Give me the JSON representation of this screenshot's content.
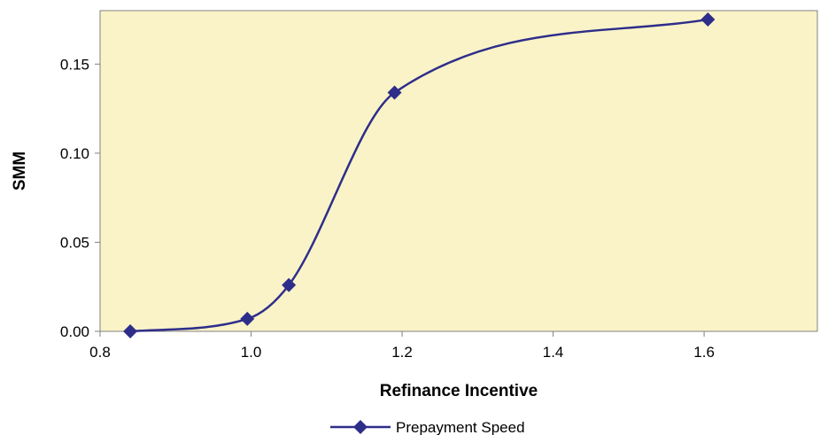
{
  "chart_data": {
    "type": "line",
    "title": "",
    "xlabel": "Refinance Incentive",
    "ylabel": "SMM",
    "xlim": [
      0.8,
      1.75
    ],
    "ylim": [
      0.0,
      0.18
    ],
    "x_ticks": [
      0.8,
      1.0,
      1.2,
      1.4,
      1.6
    ],
    "x_tick_labels": [
      "0.8",
      "1.0",
      "1.2",
      "1.4",
      "1.6"
    ],
    "y_ticks": [
      0.0,
      0.05,
      0.1,
      0.15
    ],
    "y_tick_labels": [
      "0.00",
      "0.05",
      "0.10",
      "0.15"
    ],
    "grid": false,
    "legend_position": "bottom-center",
    "plot_background": "#FAF3C8",
    "series": [
      {
        "name": "Prepayment Speed",
        "color": "#2E2E8A",
        "marker": "diamond",
        "x": [
          0.84,
          0.995,
          1.05,
          1.19,
          1.605
        ],
        "y": [
          0.0,
          0.007,
          0.026,
          0.134,
          0.175
        ]
      }
    ]
  }
}
